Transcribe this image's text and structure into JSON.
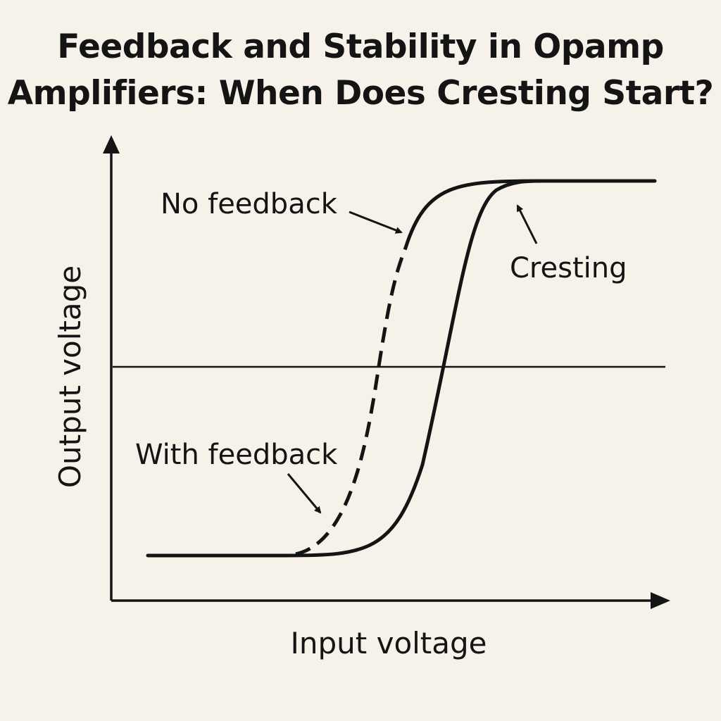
{
  "title": {
    "line1": "Feedback and Stability in Opamp",
    "line2": "Amplifiers: When Does Cresting Start?"
  },
  "chart_data": {
    "type": "line",
    "title": "Feedback and Stability in Opamp Amplifiers: When Does Cresting Start?",
    "xlabel": "Input voltage",
    "ylabel": "Output voltage",
    "xlim": [
      0,
      1
    ],
    "ylim": [
      0,
      1
    ],
    "grid": false,
    "reference_line": {
      "y": 0.5
    },
    "series": [
      {
        "name": "No feedback",
        "style": "solid (upper part), dashed (lower part)",
        "center_x": 0.5,
        "low": 0.1,
        "high": 0.9
      },
      {
        "name": "Cresting",
        "style": "solid",
        "center_x": 0.6,
        "low": 0.1,
        "high": 0.9
      }
    ],
    "annotations": [
      {
        "text": "No feedback",
        "target": "upper solid segment of steeper curve"
      },
      {
        "text": "Cresting",
        "target": "top bend of right curve"
      },
      {
        "text": "With feedback",
        "target": "dashed lower segment"
      }
    ]
  },
  "colors": {
    "background": "#f6f2ea",
    "ink": "#141414"
  }
}
